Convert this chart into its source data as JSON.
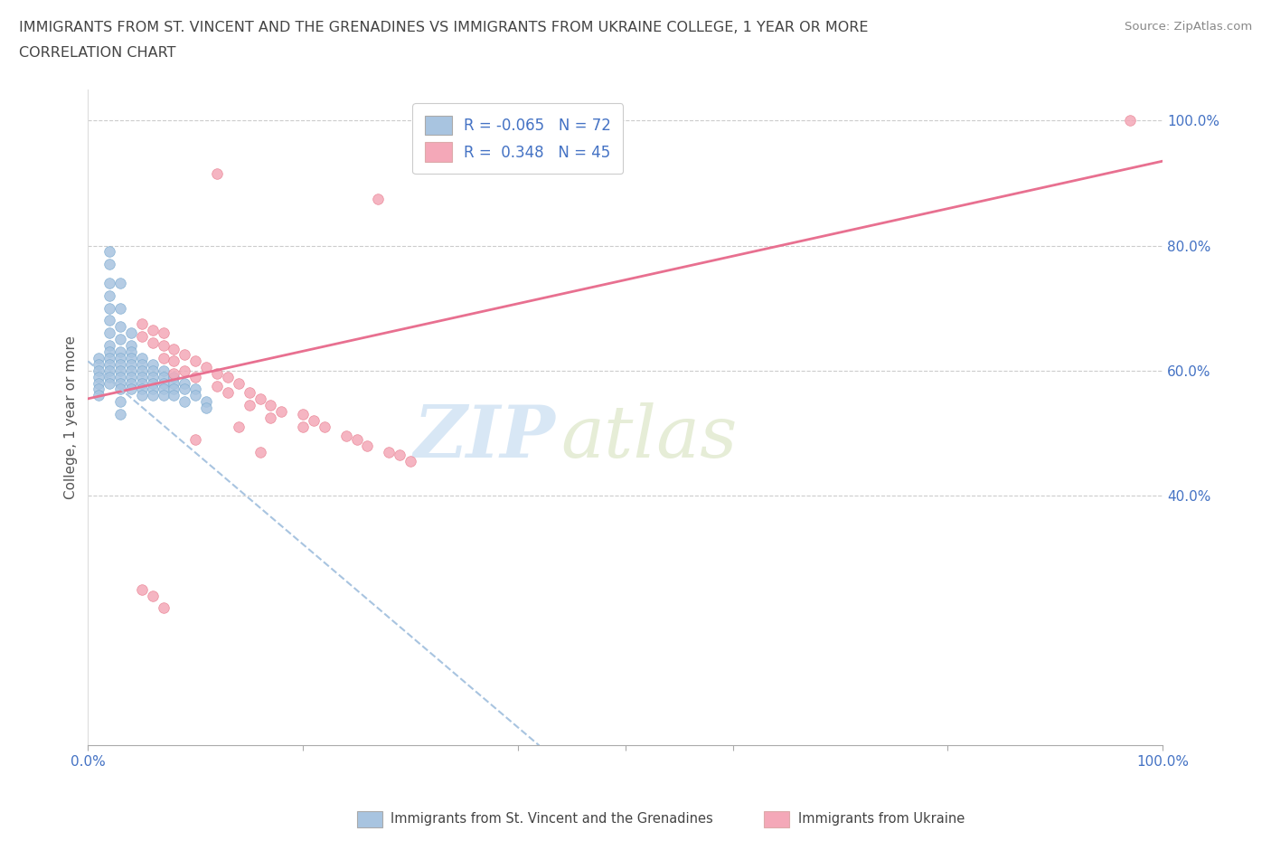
{
  "title_line1": "IMMIGRANTS FROM ST. VINCENT AND THE GRENADINES VS IMMIGRANTS FROM UKRAINE COLLEGE, 1 YEAR OR MORE",
  "title_line2": "CORRELATION CHART",
  "source_text": "Source: ZipAtlas.com",
  "ylabel": "College, 1 year or more",
  "xlim": [
    0.0,
    1.0
  ],
  "ylim": [
    0.0,
    1.05
  ],
  "ytick_labels_right": [
    "100.0%",
    "80.0%",
    "60.0%",
    "40.0%"
  ],
  "ytick_positions_right": [
    1.0,
    0.8,
    0.6,
    0.4
  ],
  "watermark_zip": "ZIP",
  "watermark_atlas": "atlas",
  "legend_label1": "R = -0.065   N = 72",
  "legend_label2": "R =  0.348   N = 45",
  "color_blue": "#a8c4e0",
  "color_blue_edge": "#7aaad0",
  "color_pink": "#f4a8b8",
  "color_pink_edge": "#e88090",
  "line_pink": "#e87090",
  "line_blue_dashed": "#a8c4e0",
  "grid_color": "#cccccc",
  "title_color": "#444444",
  "axis_label_color": "#4472c4",
  "legend_text_color": "#4472c4",
  "pink_line_x0": 0.0,
  "pink_line_x1": 1.0,
  "pink_line_y0": 0.555,
  "pink_line_y1": 0.935,
  "blue_line_x0": 0.0,
  "blue_line_x1": 0.42,
  "blue_line_y0": 0.615,
  "blue_line_y1": 0.0,
  "blue_scatter_x": [
    0.01,
    0.01,
    0.01,
    0.01,
    0.01,
    0.01,
    0.01,
    0.02,
    0.02,
    0.02,
    0.02,
    0.02,
    0.02,
    0.02,
    0.02,
    0.02,
    0.02,
    0.02,
    0.02,
    0.02,
    0.02,
    0.03,
    0.03,
    0.03,
    0.03,
    0.03,
    0.03,
    0.03,
    0.03,
    0.03,
    0.03,
    0.03,
    0.03,
    0.03,
    0.04,
    0.04,
    0.04,
    0.04,
    0.04,
    0.04,
    0.04,
    0.04,
    0.04,
    0.05,
    0.05,
    0.05,
    0.05,
    0.05,
    0.05,
    0.05,
    0.06,
    0.06,
    0.06,
    0.06,
    0.06,
    0.06,
    0.07,
    0.07,
    0.07,
    0.07,
    0.07,
    0.08,
    0.08,
    0.08,
    0.08,
    0.09,
    0.09,
    0.09,
    0.1,
    0.1,
    0.11,
    0.11
  ],
  "blue_scatter_y": [
    0.62,
    0.61,
    0.6,
    0.59,
    0.58,
    0.57,
    0.56,
    0.79,
    0.77,
    0.74,
    0.72,
    0.7,
    0.68,
    0.66,
    0.64,
    0.63,
    0.62,
    0.61,
    0.6,
    0.59,
    0.58,
    0.74,
    0.7,
    0.67,
    0.65,
    0.63,
    0.62,
    0.61,
    0.6,
    0.59,
    0.58,
    0.57,
    0.55,
    0.53,
    0.66,
    0.64,
    0.63,
    0.62,
    0.61,
    0.6,
    0.59,
    0.58,
    0.57,
    0.62,
    0.61,
    0.6,
    0.59,
    0.58,
    0.57,
    0.56,
    0.61,
    0.6,
    0.59,
    0.58,
    0.57,
    0.56,
    0.6,
    0.59,
    0.58,
    0.57,
    0.56,
    0.59,
    0.58,
    0.57,
    0.56,
    0.58,
    0.57,
    0.55,
    0.57,
    0.56,
    0.55,
    0.54
  ],
  "pink_scatter_x": [
    0.97,
    0.12,
    0.27,
    0.05,
    0.05,
    0.06,
    0.06,
    0.07,
    0.07,
    0.07,
    0.08,
    0.08,
    0.08,
    0.09,
    0.09,
    0.1,
    0.1,
    0.11,
    0.12,
    0.12,
    0.13,
    0.13,
    0.14,
    0.15,
    0.15,
    0.16,
    0.17,
    0.17,
    0.18,
    0.2,
    0.2,
    0.21,
    0.22,
    0.24,
    0.25,
    0.26,
    0.28,
    0.29,
    0.3,
    0.05,
    0.06,
    0.07,
    0.1,
    0.14,
    0.16
  ],
  "pink_scatter_y": [
    1.0,
    0.915,
    0.875,
    0.675,
    0.655,
    0.665,
    0.645,
    0.66,
    0.64,
    0.62,
    0.635,
    0.615,
    0.595,
    0.625,
    0.6,
    0.615,
    0.59,
    0.605,
    0.595,
    0.575,
    0.59,
    0.565,
    0.58,
    0.565,
    0.545,
    0.555,
    0.545,
    0.525,
    0.535,
    0.53,
    0.51,
    0.52,
    0.51,
    0.495,
    0.49,
    0.48,
    0.47,
    0.465,
    0.455,
    0.25,
    0.24,
    0.22,
    0.49,
    0.51,
    0.47
  ]
}
